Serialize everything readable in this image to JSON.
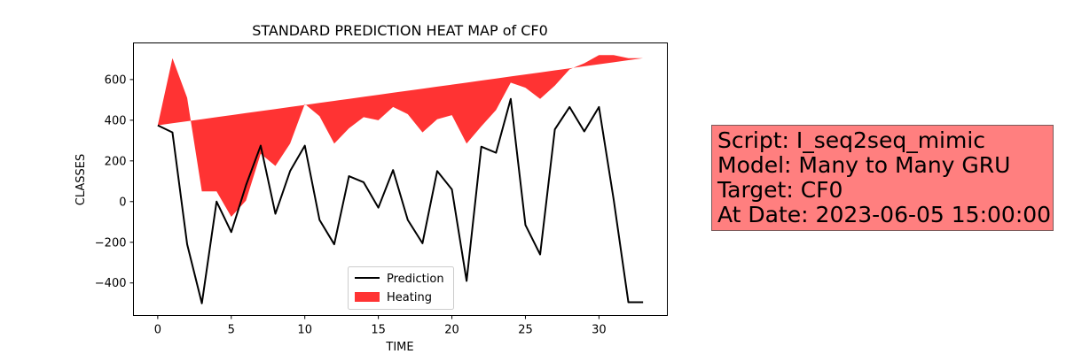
{
  "chart_data": {
    "type": "line",
    "title": "STANDARD PREDICTION HEAT MAP of CF0",
    "xlabel": "TIME",
    "ylabel": "CLASSES",
    "xlim": [
      -1.65,
      34.65
    ],
    "ylim": [
      -560,
      780
    ],
    "xticks": [
      0,
      5,
      10,
      15,
      20,
      25,
      30
    ],
    "yticks": [
      -400,
      -200,
      0,
      200,
      400,
      600
    ],
    "grid": false,
    "legend_position": "lower-center",
    "series": [
      {
        "name": "Prediction",
        "kind": "line",
        "color": "#000000",
        "x": [
          0,
          1,
          2,
          3,
          4,
          5,
          6,
          7,
          8,
          9,
          10,
          11,
          12,
          13,
          14,
          15,
          16,
          17,
          18,
          19,
          20,
          21,
          22,
          23,
          24,
          25,
          26,
          27,
          28,
          29,
          30,
          31,
          32,
          33
        ],
        "y": [
          375,
          340,
          -210,
          -500,
          0,
          -150,
          80,
          275,
          -60,
          150,
          275,
          -90,
          -210,
          125,
          95,
          -30,
          155,
          -90,
          -205,
          150,
          60,
          -390,
          270,
          240,
          505,
          -115,
          -260,
          355,
          465,
          345,
          465,
          10,
          -495,
          -495
        ]
      },
      {
        "name": "Heating",
        "kind": "fill_between",
        "color": "#ff0000",
        "x": [
          0,
          1,
          2,
          3,
          4,
          5,
          6,
          7,
          8,
          9,
          10,
          11,
          12,
          13,
          14,
          15,
          16,
          17,
          18,
          19,
          20,
          21,
          22,
          23,
          24,
          25,
          26,
          27,
          28,
          29,
          30,
          31,
          32,
          33
        ],
        "y1": [
          375,
          385,
          395,
          405,
          415,
          425,
          435,
          445,
          455,
          465,
          475,
          485,
          495,
          505,
          515,
          525,
          535,
          545,
          555,
          565,
          575,
          585,
          595,
          605,
          615,
          625,
          635,
          645,
          655,
          665,
          675,
          685,
          695,
          705
        ],
        "y2": [
          375,
          705,
          510,
          50,
          50,
          -75,
          5,
          235,
          175,
          285,
          480,
          420,
          285,
          360,
          415,
          400,
          465,
          430,
          340,
          405,
          425,
          285,
          370,
          450,
          585,
          560,
          505,
          570,
          650,
          680,
          720,
          720,
          705,
          705
        ]
      }
    ]
  },
  "info_box": {
    "script": "Script: I_seq2seq_mimic",
    "model": "Model: Many to Many GRU",
    "target": "Target: CF0",
    "date": "At Date: 2023-06-05 15:00:00"
  }
}
